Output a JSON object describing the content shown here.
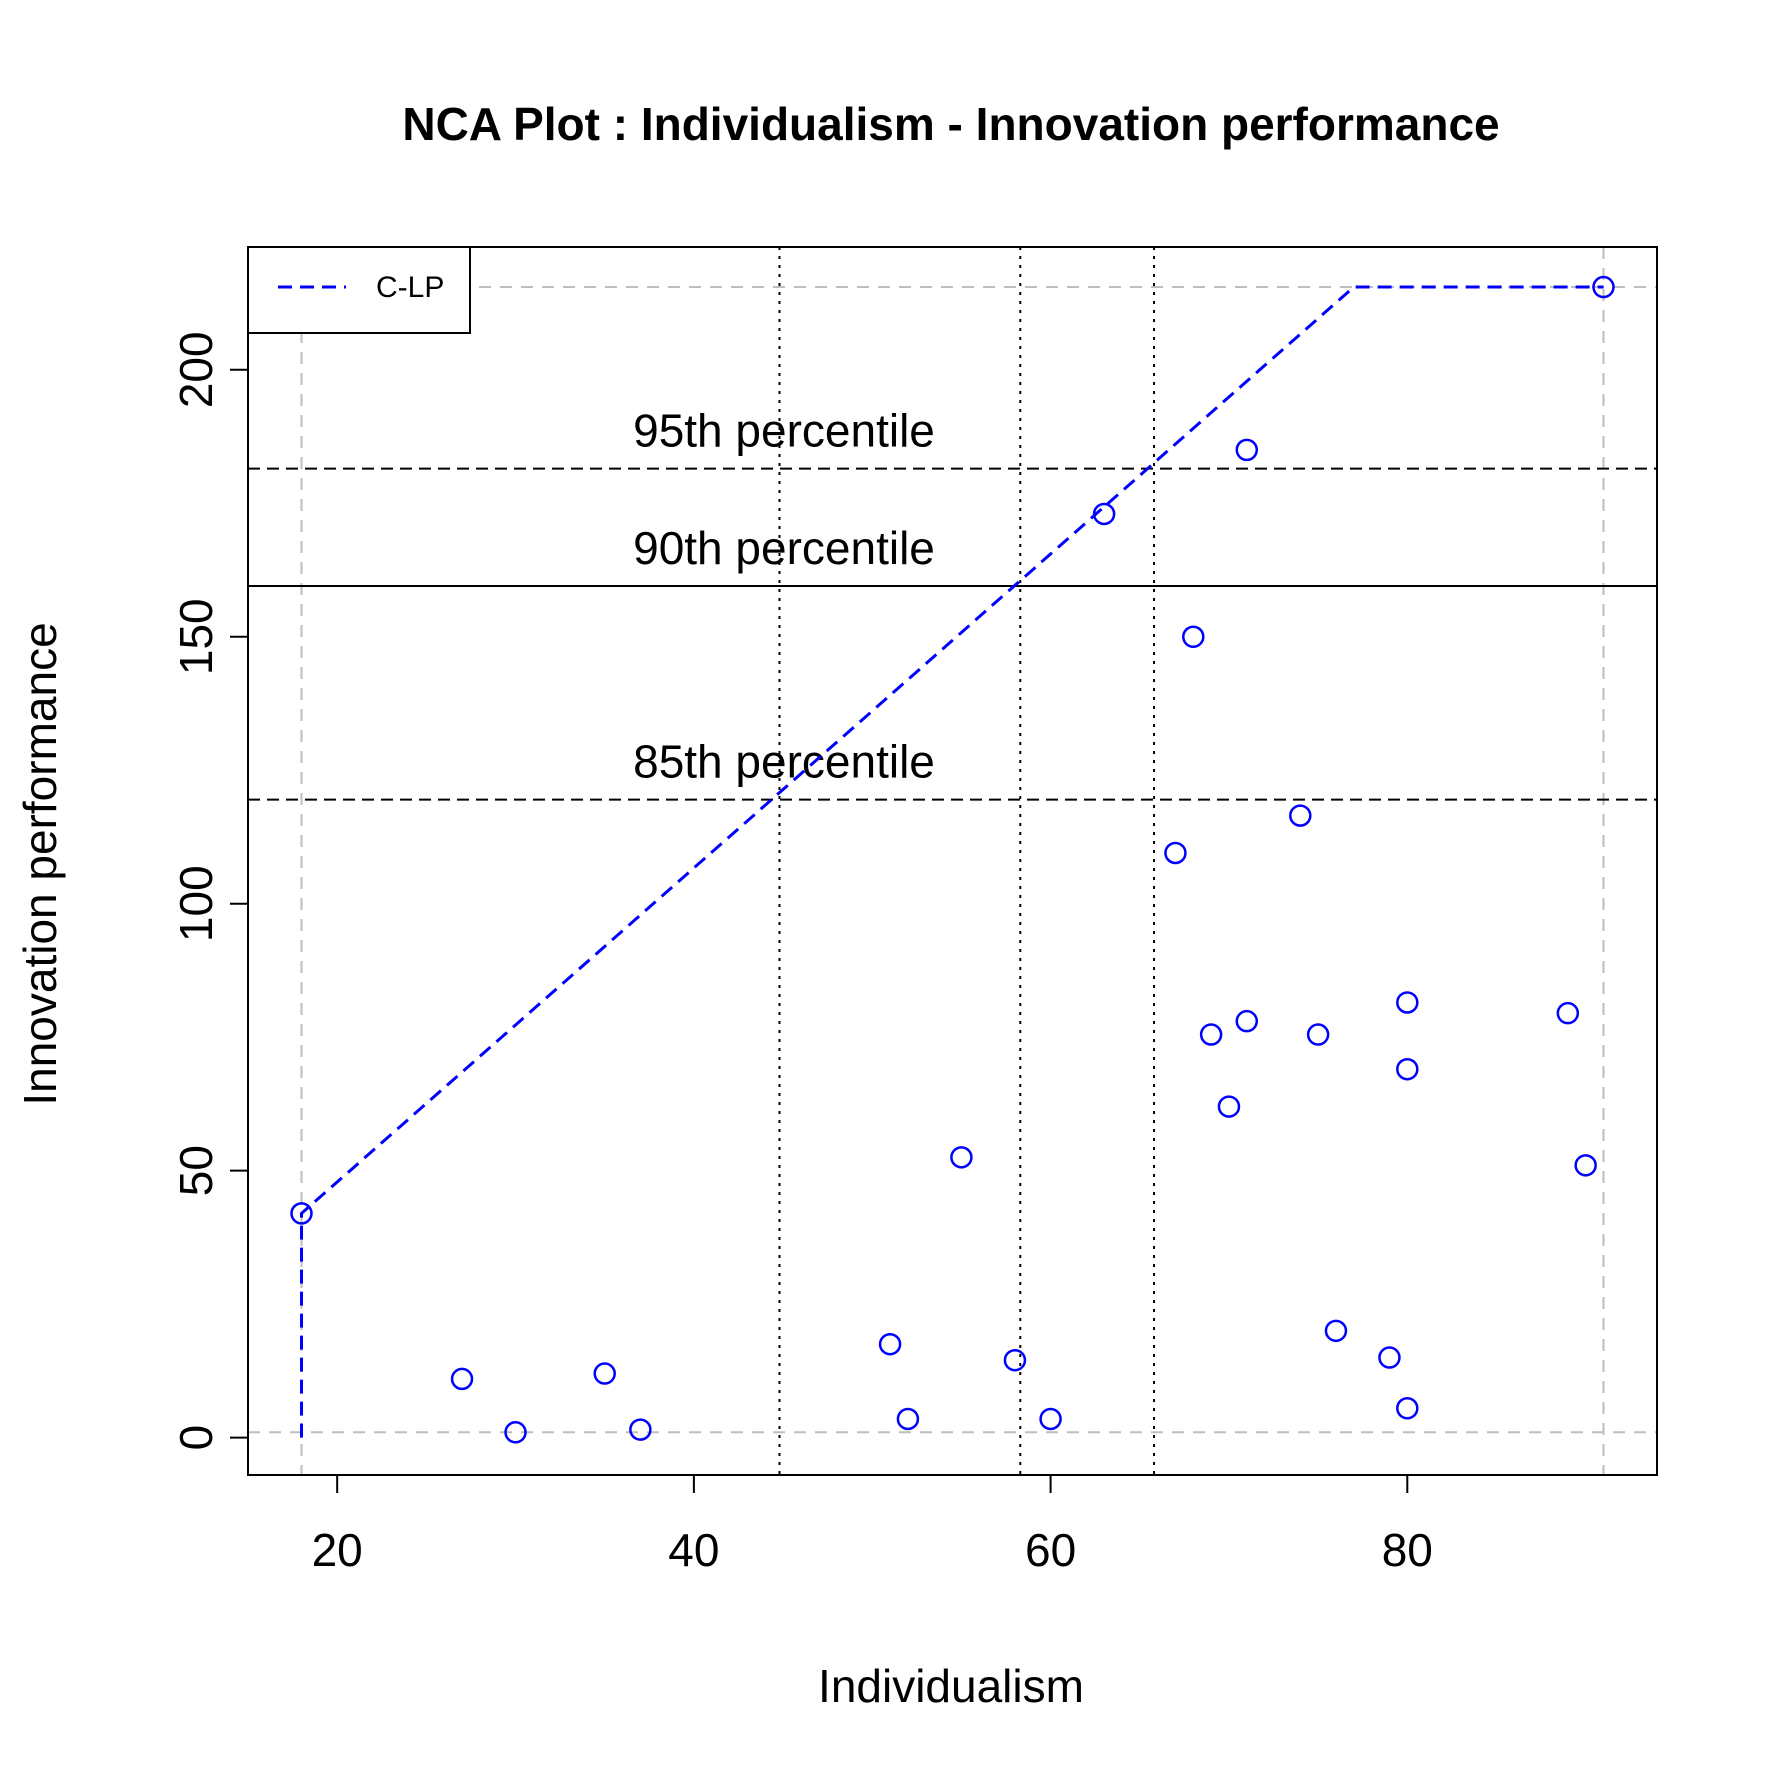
{
  "chart_data": {
    "type": "scatter",
    "title": "NCA Plot : Individualism - Innovation performance",
    "xlabel": "Individualism",
    "ylabel": "Innovation performance",
    "xlim": [
      15,
      94
    ],
    "ylim": [
      -7,
      223
    ],
    "x_ticks": [
      20,
      40,
      60,
      80
    ],
    "y_ticks": [
      0,
      50,
      100,
      150,
      200
    ],
    "grid": false,
    "legend_position": "top-left",
    "colors": {
      "points": "#0000ff",
      "ceiling": "#0000ff",
      "reference": "#bebebe",
      "lines": "#000000"
    },
    "points": [
      {
        "x": 18,
        "y": 42
      },
      {
        "x": 27,
        "y": 11
      },
      {
        "x": 30,
        "y": 1
      },
      {
        "x": 35,
        "y": 12
      },
      {
        "x": 37,
        "y": 1.5
      },
      {
        "x": 51,
        "y": 17.5
      },
      {
        "x": 52,
        "y": 3.5
      },
      {
        "x": 55,
        "y": 52.5
      },
      {
        "x": 58,
        "y": 14.5
      },
      {
        "x": 60,
        "y": 3.5
      },
      {
        "x": 63,
        "y": 173
      },
      {
        "x": 67,
        "y": 109.5
      },
      {
        "x": 68,
        "y": 150
      },
      {
        "x": 69,
        "y": 75.5
      },
      {
        "x": 70,
        "y": 62
      },
      {
        "x": 71,
        "y": 185
      },
      {
        "x": 71,
        "y": 78
      },
      {
        "x": 74,
        "y": 116.5
      },
      {
        "x": 75,
        "y": 75.5
      },
      {
        "x": 76,
        "y": 20
      },
      {
        "x": 79,
        "y": 15
      },
      {
        "x": 80,
        "y": 81.5
      },
      {
        "x": 80,
        "y": 69
      },
      {
        "x": 80,
        "y": 5.5
      },
      {
        "x": 89,
        "y": 79.5
      },
      {
        "x": 90,
        "y": 51
      },
      {
        "x": 91,
        "y": 215.5
      }
    ],
    "ceiling_line": {
      "name": "C-LP",
      "points": [
        [
          18,
          0
        ],
        [
          18,
          42
        ],
        [
          77,
          215.5
        ],
        [
          91,
          215.5
        ]
      ]
    },
    "reference_lines": {
      "x_min": 18,
      "x_max": 91,
      "y_min": 1,
      "y_max": 215.5
    },
    "percentile_lines": [
      {
        "label": "95th percentile",
        "y": 181.5,
        "x": 65.8,
        "style": "dashed"
      },
      {
        "label": "90th percentile",
        "y": 159.5,
        "x": 58.3,
        "style": "solid"
      },
      {
        "label": "85th percentile",
        "y": 119.5,
        "x": 44.8,
        "style": "dashed"
      }
    ],
    "legend": [
      "C-LP"
    ]
  }
}
